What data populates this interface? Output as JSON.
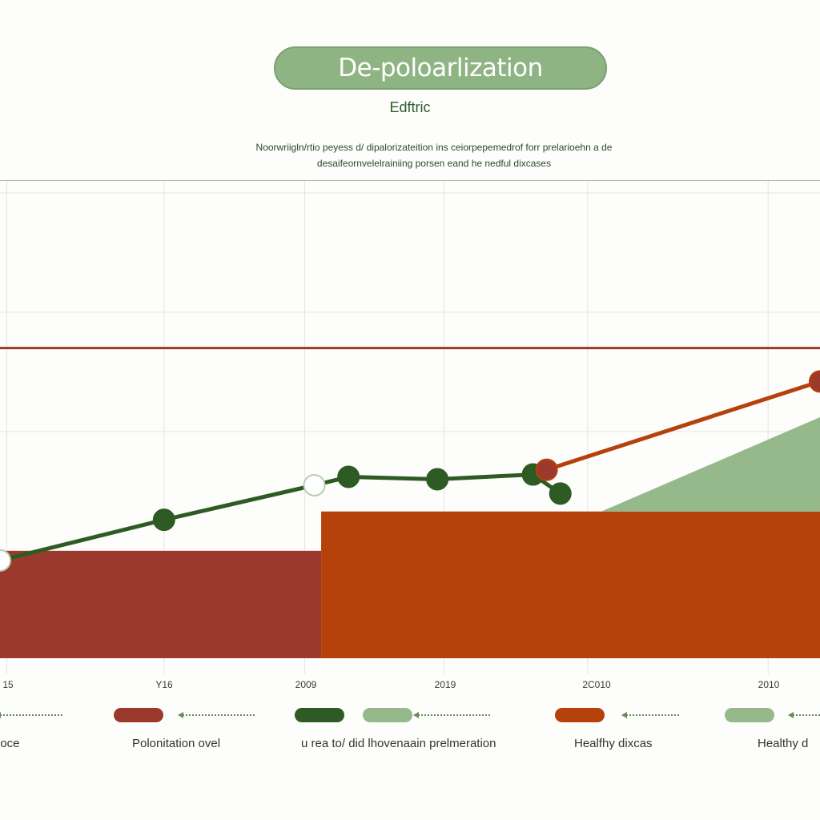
{
  "title": "De-poloarlization",
  "subtitle": "Edftric",
  "description": {
    "line1": "Noorwriigln/rtio peyess d/ dipalorizateition ins ceiorpepemedrof forr prelarioehn a de",
    "line2": "desaifeornvelelrainiing porsen eand he nedful dixcases"
  },
  "colors": {
    "red": "#9b3a2c",
    "orange": "#b5410b",
    "dark_green": "#2e5a23",
    "light_green": "#95b98a",
    "ref_line": "#9b3a2c"
  },
  "chart_data": {
    "type": "line",
    "x_tick_labels": [
      "15",
      "Y16",
      "2009",
      "2019",
      "2C010",
      "2010"
    ],
    "series": [
      {
        "color": "dark_green",
        "type": "line",
        "points": [
          [
            0.0,
            0.42
          ],
          [
            1.2,
            0.76
          ],
          [
            2.3,
            1.05
          ],
          [
            2.55,
            1.12
          ],
          [
            3.2,
            1.1
          ],
          [
            3.9,
            1.14
          ],
          [
            4.1,
            0.98
          ]
        ]
      },
      {
        "color": "orange",
        "type": "line",
        "points": [
          [
            4.0,
            1.18
          ],
          [
            6.0,
            1.92
          ]
        ]
      },
      {
        "color": "red",
        "type": "area",
        "range": [
          0.0,
          2.35
        ],
        "level": 0.5
      },
      {
        "color": "orange",
        "type": "area",
        "range": [
          2.35,
          6.0
        ],
        "level": 0.83
      },
      {
        "color": "light_green",
        "type": "area",
        "range": [
          4.4,
          6.0
        ],
        "level_start": 0.83,
        "level_end": 1.62
      }
    ],
    "reference_line": 2.2,
    "ylim": [
      -0.4,
      3.6
    ],
    "xlim": [
      0,
      6
    ],
    "grid": true
  },
  "legend": [
    {
      "label": "rioce",
      "swatch": null
    },
    {
      "label": "Polonitation ovel",
      "swatch": "red"
    },
    {
      "label": "u rea to/ did lhovenaain prelmeration",
      "swatch": "dark_green",
      "swatch2": "light_green"
    },
    {
      "label": "Healfhy dixcas",
      "swatch": "orange"
    },
    {
      "label": "Healthy d",
      "swatch": "light_green"
    }
  ]
}
